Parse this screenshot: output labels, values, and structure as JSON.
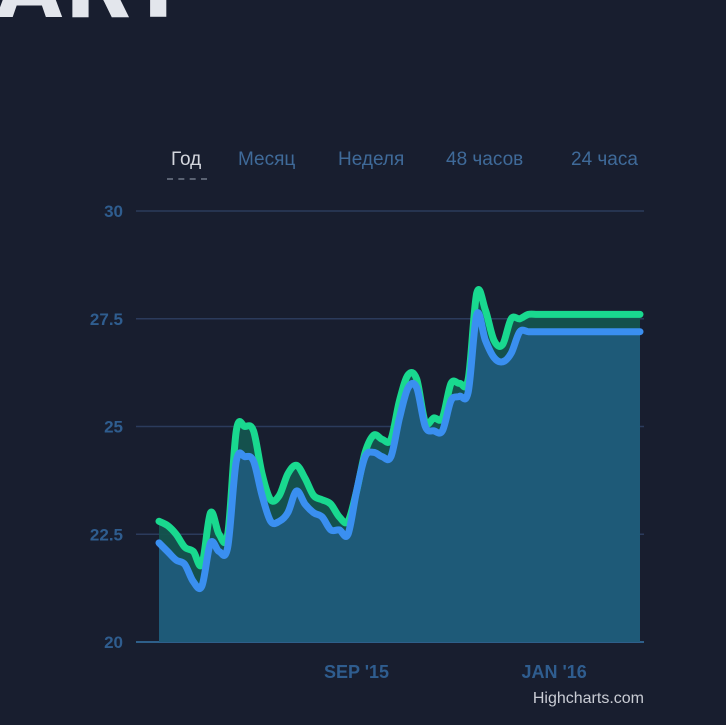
{
  "heading_fragment": "ART",
  "tabs": [
    {
      "label": "Год",
      "active": true
    },
    {
      "label": "Месяц",
      "active": false
    },
    {
      "label": "Неделя",
      "active": false
    },
    {
      "label": "48 часов",
      "active": false
    },
    {
      "label": "24 часа",
      "active": false
    }
  ],
  "credits": "Highcharts.com",
  "colors": {
    "background": "#181e2f",
    "grid": "#2b3b5c",
    "tick_text": "#2f5d8f",
    "series_upper": "#19d98f",
    "series_lower": "#3a8ff0",
    "area_lower": "#1e5a78",
    "area_band": "#14544f"
  },
  "chart_data": {
    "type": "area",
    "title": "",
    "xlabel": "",
    "ylabel": "",
    "ylim": [
      20,
      30
    ],
    "y_ticks": [
      "20",
      "22.5",
      "25",
      "27.5",
      "30"
    ],
    "x_ticks": [
      {
        "label": "SEP '15",
        "index": 23
      },
      {
        "label": "JAN '16",
        "index": 46
      }
    ],
    "grid": true,
    "legend": "none",
    "x": [
      0,
      1,
      2,
      3,
      4,
      5,
      6,
      7,
      8,
      9,
      10,
      11,
      12,
      13,
      14,
      15,
      16,
      17,
      18,
      19,
      20,
      21,
      22,
      23,
      24,
      25,
      26,
      27,
      28,
      29,
      30,
      31,
      32,
      33,
      34,
      35,
      36,
      37,
      38,
      39,
      40,
      41,
      42,
      43,
      44,
      45,
      46,
      47,
      48,
      49,
      50,
      51,
      52,
      53,
      54,
      55,
      56
    ],
    "series": [
      {
        "name": "",
        "values": [
          22.8,
          22.7,
          22.5,
          22.2,
          22.1,
          21.8,
          23.0,
          22.5,
          22.5,
          24.9,
          25.0,
          24.9,
          23.9,
          23.3,
          23.4,
          23.9,
          24.1,
          23.8,
          23.4,
          23.3,
          23.2,
          22.9,
          22.8,
          23.5,
          24.4,
          24.8,
          24.7,
          24.7,
          25.6,
          26.2,
          26.1,
          25.1,
          25.2,
          25.2,
          26.0,
          26.0,
          26.1,
          28.1,
          27.7,
          27.0,
          26.9,
          27.5,
          27.5,
          27.6,
          27.6,
          27.6,
          27.6,
          27.6,
          27.6,
          27.6,
          27.6,
          27.6,
          27.6,
          27.6,
          27.6,
          27.6,
          27.6
        ],
        "color": "#19d98f"
      },
      {
        "name": "",
        "values": [
          22.3,
          22.1,
          21.9,
          21.8,
          21.4,
          21.3,
          22.3,
          22.1,
          22.2,
          24.2,
          24.3,
          24.2,
          23.4,
          22.8,
          22.8,
          23.0,
          23.5,
          23.2,
          23.0,
          22.9,
          22.6,
          22.6,
          22.5,
          23.5,
          24.3,
          24.4,
          24.3,
          24.3,
          25.2,
          25.9,
          25.9,
          25.0,
          24.9,
          24.9,
          25.6,
          25.7,
          25.8,
          27.6,
          27.0,
          26.6,
          26.5,
          26.7,
          27.2,
          27.2,
          27.2,
          27.2,
          27.2,
          27.2,
          27.2,
          27.2,
          27.2,
          27.2,
          27.2,
          27.2,
          27.2,
          27.2,
          27.2
        ],
        "color": "#3a8ff0"
      }
    ]
  }
}
